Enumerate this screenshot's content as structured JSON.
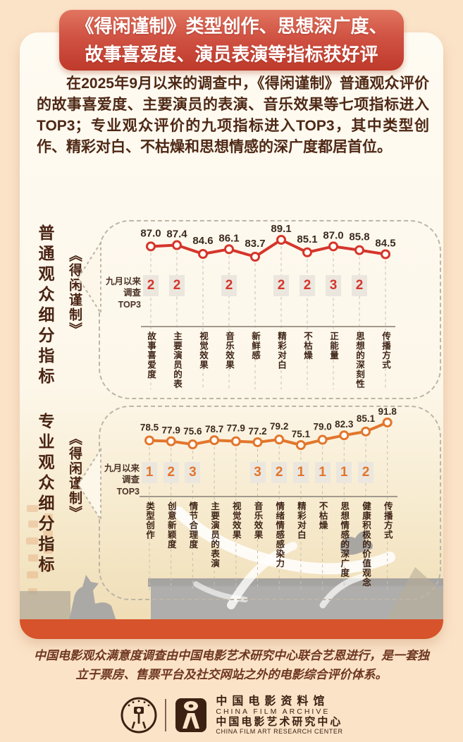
{
  "poster": {
    "title_line1": "《得闲谨制》类型创作、思想深广度、",
    "title_line2": "故事喜爱度、演员表演等指标获好评",
    "intro": "在2025年9月以来的调查中，《得闲谨制》普通观众评价的故事喜爱度、主要演员的表演、音乐效果等七项指标进入TOP3；专业观众评价的九项指标进入TOP3，其中类型创作、精彩对白、不枯燥和思想情感的深广度都居首位。",
    "footer": "中国电影观众满意度调查由中国电影艺术研究中心联合艺恩进行，是一套独立于票房、售票平台及社交网站之外的电影综合评价体系。",
    "colors": {
      "chart1_accent": "#d5352b",
      "chart2_accent": "#e2762c",
      "title_bg": "#cf4434",
      "bottom_bar": "#d6532b"
    }
  },
  "chart_data": [
    {
      "type": "line",
      "group_label": "普通观众细分指标",
      "series_name": "《得闲谨制》",
      "annotation_line1": "九月以来",
      "annotation_line2": "调查TOP3",
      "categories": [
        "故事喜爱度",
        "主要演员的表演",
        "视觉效果",
        "音乐效果",
        "新鲜感",
        "精彩对白",
        "不枯燥",
        "正能量",
        "思想的深刻性",
        "传播方式"
      ],
      "values": [
        87.0,
        87.4,
        84.6,
        86.1,
        83.7,
        89.1,
        85.1,
        87.0,
        85.8,
        84.5
      ],
      "top3_ranks": [
        "2",
        "2",
        "",
        "2",
        "",
        "2",
        "2",
        "3",
        "2",
        ""
      ],
      "color": "#d5352b",
      "ylim": [
        82,
        91
      ],
      "grid": "dashed-vertical",
      "legend_position": "left"
    },
    {
      "type": "line",
      "group_label": "专业观众细分指标",
      "series_name": "《得闲谨制》",
      "annotation_line1": "九月以来",
      "annotation_line2": "调查TOP3",
      "categories": [
        "类型创作",
        "创意新颖度",
        "情节合理度",
        "主要演员的表演",
        "视觉效果",
        "音乐效果",
        "情绪情感感染力",
        "精彩对白",
        "不枯燥",
        "思想情感的深广度",
        "健康积极的价值观念",
        "传播方式"
      ],
      "values": [
        78.5,
        77.9,
        75.6,
        78.7,
        77.9,
        77.2,
        79.2,
        75.1,
        79.0,
        82.3,
        85.1,
        91.8
      ],
      "top3_ranks": [
        "1",
        "2",
        "3",
        "",
        "",
        "3",
        "2",
        "1",
        "1",
        "1",
        "2",
        ""
      ],
      "color": "#e2762c",
      "ylim": [
        73,
        94
      ],
      "grid": "dashed-vertical",
      "legend_position": "left"
    }
  ],
  "logos": {
    "org1_cn": "中国电影资料馆",
    "org1_en": "CHINA FILM ARCHIVE",
    "org2_cn": "中国电影艺术研究中心",
    "org2_en": "CHINA FILM ART RESEARCH CENTER",
    "mark1": "china-film-archive-seal",
    "mark2": "film-art-research-center-mark"
  }
}
